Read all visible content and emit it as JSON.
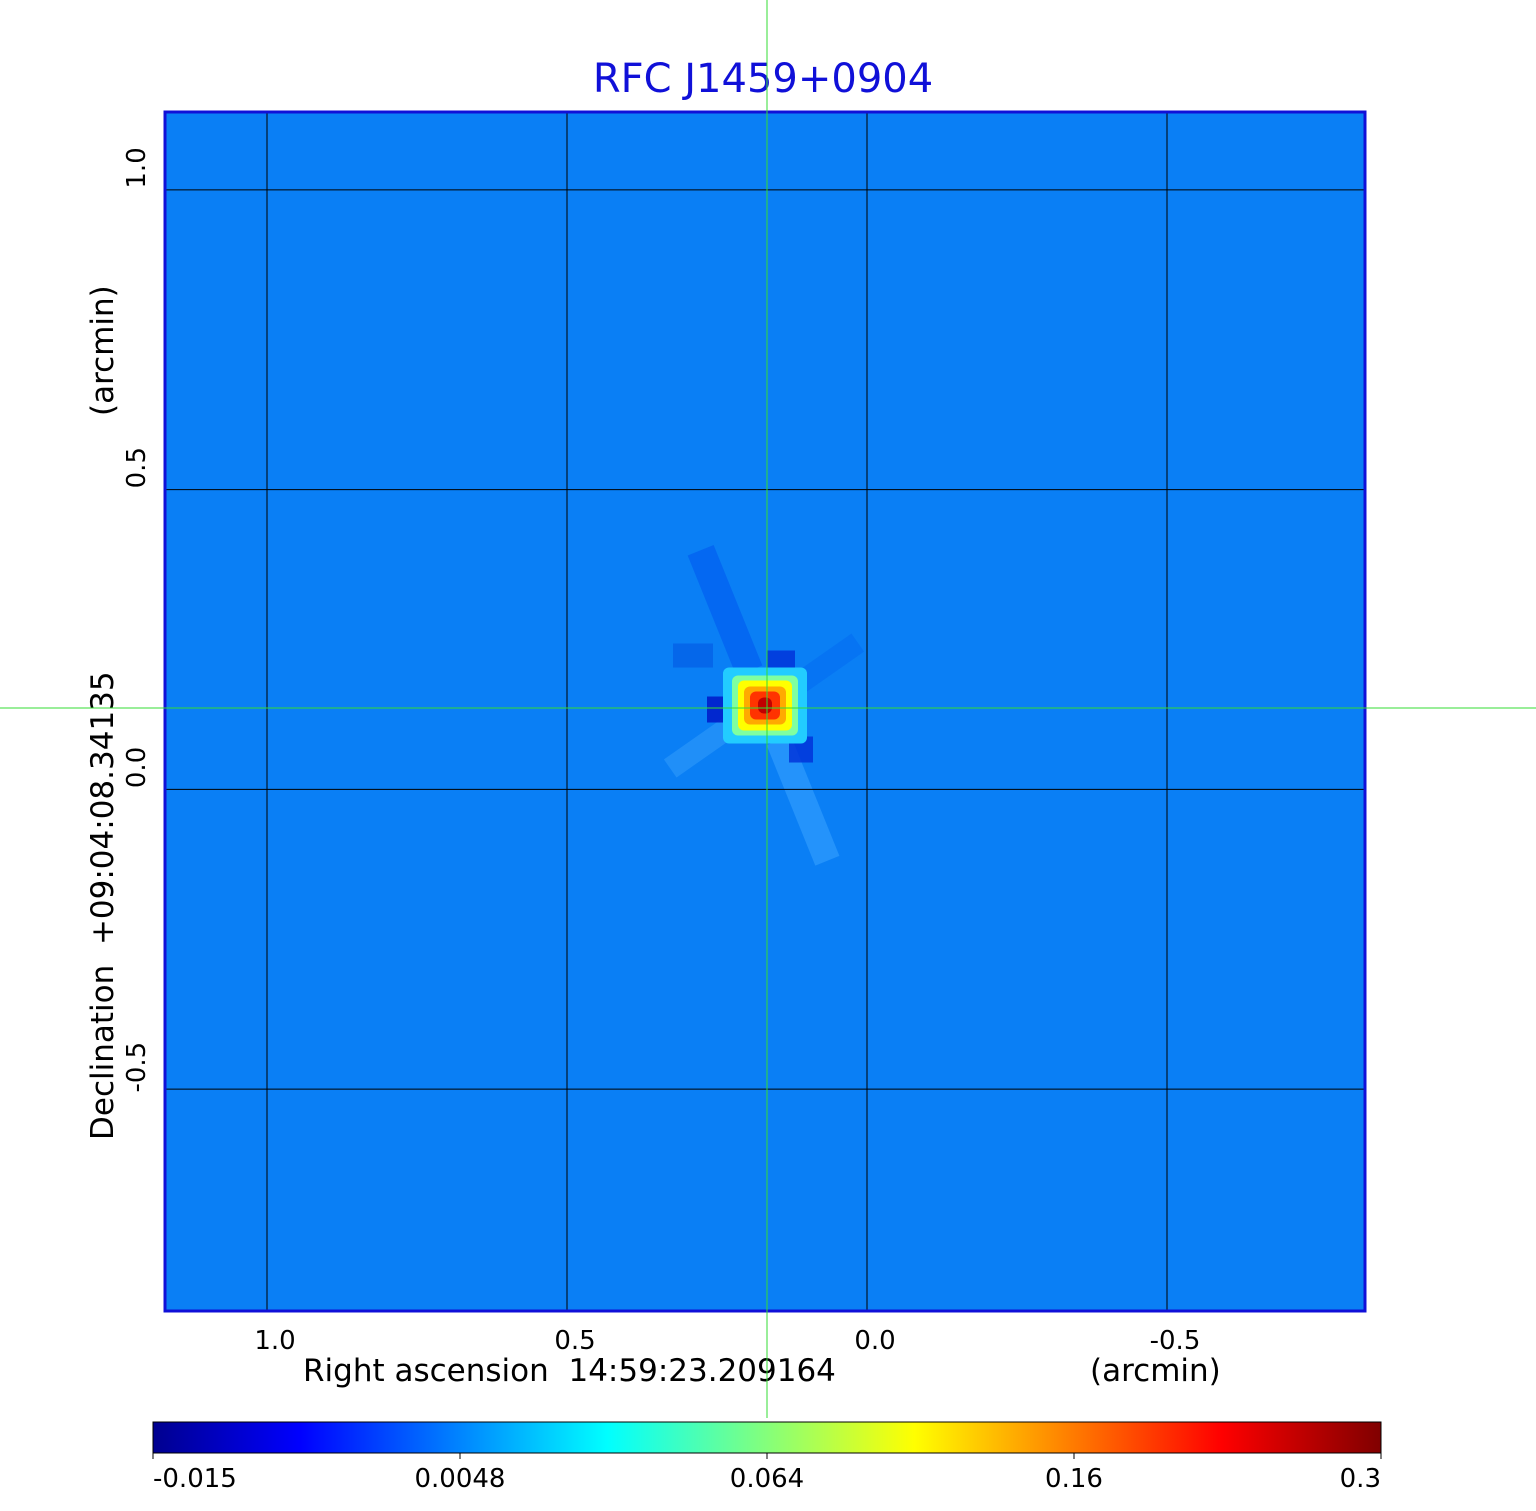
{
  "chart_data": {
    "type": "heatmap",
    "title": "RFC J1459+0904",
    "xlabel": "Right ascension  14:59:23.209164",
    "xunit": "(arcmin)",
    "ylabel": "Declination  +09:04:08.34135",
    "yunit": "(arcmin)",
    "xlim": [
      1.17,
      -0.83
    ],
    "ylim": [
      -0.87,
      1.13
    ],
    "x_ticks": [
      1.0,
      0.5,
      0.0,
      -0.5
    ],
    "y_ticks": [
      1.0,
      0.5,
      0.0,
      -0.5
    ],
    "x_tick_labels": [
      "1.0",
      "0.5",
      "0.0",
      "-0.5"
    ],
    "y_tick_labels": [
      "1.0",
      "0.5",
      "0.0",
      "-0.5"
    ],
    "grid": true,
    "crosshair": {
      "x": 0.17,
      "y": 0.14
    },
    "peak": {
      "x": 0.17,
      "y": 0.14,
      "value": 0.3
    },
    "colorbar": {
      "colormap": "jet",
      "position": "bottom",
      "ticks": [
        -0.015,
        0.0048,
        0.064,
        0.16,
        0.3
      ],
      "tick_labels": [
        "-0.015",
        "0.0048",
        "0.064",
        "0.16",
        "0.3"
      ]
    },
    "colors": {
      "title": "#1010d8",
      "frame": "#1010d8",
      "background_field": "#0a7ff5",
      "crosshair": "#33dd33",
      "grid": "#000000"
    }
  }
}
